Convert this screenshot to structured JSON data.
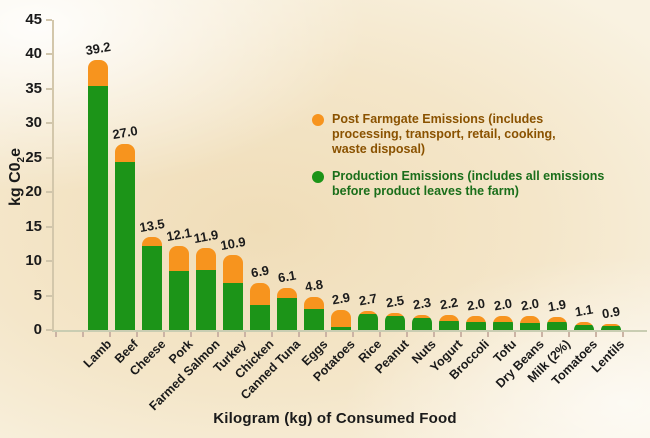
{
  "figure": {
    "y_axis_label": {
      "main": "kg C0",
      "sub": "2",
      "tail": "e"
    },
    "x_axis_label": "Kilogram (kg) of Consumed Food"
  },
  "legend": [
    {
      "series": "post-farmgate",
      "dot_color": "#F7941E",
      "text_color": "#8a5200",
      "label": "Post Farmgate Emissions (includes\nprocessing, transport, retail, cooking,\nwaste disposal)"
    },
    {
      "series": "production",
      "dot_color": "#1C9418",
      "text_color": "#1a6e1a",
      "label": "Production Emissions (includes all emissions\nbefore product leaves the farm)"
    }
  ],
  "chart_data": {
    "type": "bar",
    "stacked": true,
    "title": "",
    "xlabel": "Kilogram (kg) of Consumed Food",
    "ylabel": "kg C02e",
    "ylim": [
      0,
      45
    ],
    "yticks": [
      0,
      5,
      10,
      15,
      20,
      25,
      30,
      35,
      40,
      45
    ],
    "grid": false,
    "legend_position": "upper-right",
    "categories": [
      "Lamb",
      "Beef",
      "Cheese",
      "Pork",
      "Farmed Salmon",
      "Turkey",
      "Chicken",
      "Canned Tuna",
      "Eggs",
      "Potatoes",
      "Rice",
      "Peanut",
      "Nuts",
      "Yogurt",
      "Broccoli",
      "Tofu",
      "Dry Beans",
      "Milk (2%)",
      "Tomatoes",
      "Lentils"
    ],
    "totals": [
      39.2,
      27.0,
      13.5,
      12.1,
      11.9,
      10.9,
      6.9,
      6.1,
      4.8,
      2.9,
      2.7,
      2.5,
      2.3,
      2.2,
      2.0,
      2.0,
      2.0,
      1.9,
      1.1,
      0.9
    ],
    "total_labels": [
      "39.2",
      "27.0",
      "13.5",
      "12.1",
      "11.9",
      "10.9",
      "6.9",
      "6.1",
      "4.8",
      "2.9",
      "2.7",
      "2.5",
      "2.3",
      "2.2",
      "2.0",
      "2.0",
      "2.0",
      "1.9",
      "1.1",
      "0.9"
    ],
    "series": [
      {
        "name": "Production Emissions (includes all emissions before product leaves the farm)",
        "color": "#1C9418",
        "values": [
          35.4,
          24.4,
          12.2,
          8.5,
          8.7,
          6.8,
          3.7,
          4.6,
          3.1,
          0.4,
          2.3,
          2.1,
          1.8,
          1.3,
          1.1,
          1.2,
          1.0,
          1.2,
          0.7,
          0.6
        ]
      },
      {
        "name": "Post Farmgate Emissions (includes processing, transport, retail, cooking, waste disposal)",
        "color": "#F7941E",
        "values": [
          3.8,
          2.6,
          1.3,
          3.6,
          3.2,
          4.1,
          3.2,
          1.5,
          1.7,
          2.5,
          0.4,
          0.4,
          0.5,
          0.9,
          0.9,
          0.8,
          1.0,
          0.7,
          0.4,
          0.3
        ]
      }
    ]
  }
}
